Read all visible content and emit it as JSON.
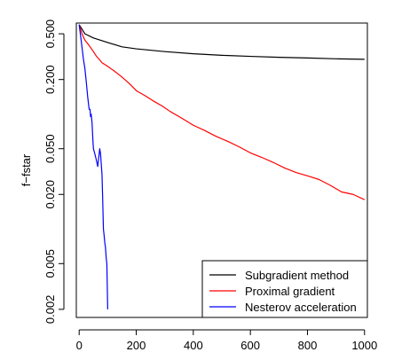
{
  "chart_data": {
    "type": "line",
    "title": "",
    "xlabel": "",
    "ylabel": "f−fstar",
    "y_scale": "log",
    "xlim": [
      -10,
      1010
    ],
    "ylim": [
      0.0017,
      0.62
    ],
    "x_ticks": [
      0,
      200,
      400,
      600,
      800,
      1000
    ],
    "x_tick_labels": [
      "0",
      "200",
      "400",
      "600",
      "800",
      "1000"
    ],
    "y_ticks": [
      0.002,
      0.005,
      0.02,
      0.05,
      0.2,
      0.5
    ],
    "y_tick_labels": [
      "0.002",
      "0.005",
      "0.020",
      "0.050",
      "0.200",
      "0.500"
    ],
    "grid": false,
    "legend_position": "bottom-right",
    "series": [
      {
        "name": "Subgradient method",
        "color": "#000000",
        "x": [
          0,
          20,
          50,
          100,
          150,
          200,
          300,
          400,
          500,
          600,
          700,
          800,
          900,
          1000
        ],
        "y": [
          0.6,
          0.5,
          0.46,
          0.42,
          0.385,
          0.37,
          0.35,
          0.335,
          0.325,
          0.318,
          0.312,
          0.308,
          0.303,
          0.3
        ]
      },
      {
        "name": "Proximal gradient",
        "color": "#ff0000",
        "x": [
          0,
          10,
          20,
          30,
          40,
          50,
          60,
          70,
          80,
          90,
          100,
          120,
          140,
          160,
          180,
          200,
          230,
          260,
          290,
          320,
          360,
          400,
          440,
          480,
          520,
          560,
          600,
          640,
          680,
          720,
          760,
          800,
          840,
          880,
          920,
          960,
          1000
        ],
        "y": [
          0.6,
          0.5,
          0.44,
          0.41,
          0.38,
          0.35,
          0.32,
          0.3,
          0.28,
          0.27,
          0.26,
          0.24,
          0.22,
          0.2,
          0.18,
          0.16,
          0.145,
          0.13,
          0.118,
          0.105,
          0.092,
          0.08,
          0.072,
          0.064,
          0.058,
          0.052,
          0.046,
          0.042,
          0.038,
          0.034,
          0.031,
          0.029,
          0.027,
          0.024,
          0.021,
          0.02,
          0.018
        ]
      },
      {
        "name": "Nesterov acceleration",
        "color": "#0000ff",
        "x": [
          0,
          5,
          10,
          15,
          20,
          25,
          30,
          35,
          38,
          40,
          42,
          45,
          48,
          50,
          55,
          60,
          65,
          70,
          72,
          75,
          78,
          80,
          82,
          85,
          87,
          90,
          92,
          95,
          97,
          100
        ],
        "y": [
          0.6,
          0.48,
          0.38,
          0.3,
          0.25,
          0.19,
          0.14,
          0.11,
          0.11,
          0.095,
          0.1,
          0.085,
          0.06,
          0.05,
          0.045,
          0.04,
          0.035,
          0.045,
          0.05,
          0.045,
          0.035,
          0.03,
          0.02,
          0.01,
          0.009,
          0.0075,
          0.007,
          0.0055,
          0.005,
          0.002
        ]
      }
    ]
  }
}
